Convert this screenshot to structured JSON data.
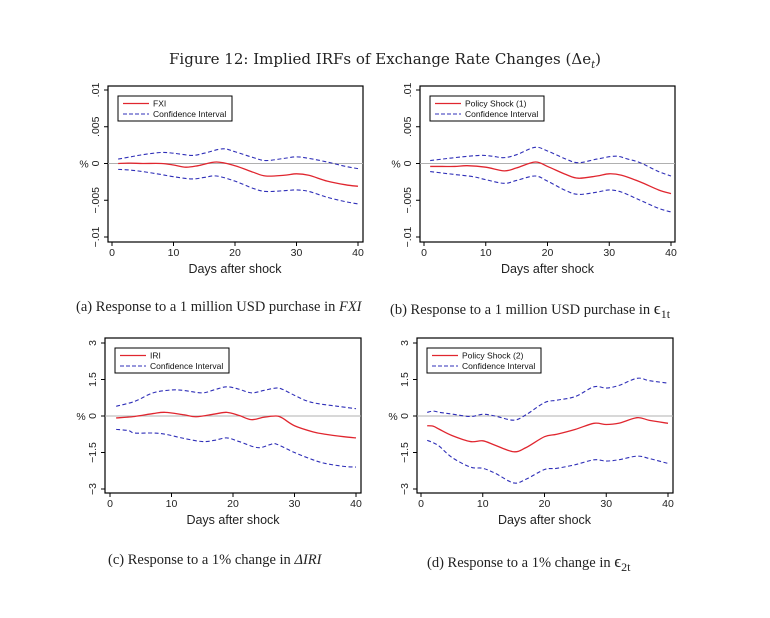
{
  "figure": {
    "title": "Figure 12: Implied IRFs of Exchange Rate Changes (Δe",
    "title_sub": "t",
    "title_close": ")"
  },
  "captions": {
    "a": {
      "prefix": "(a) Response to a 1 million USD purchase in ",
      "math": "FXI",
      "sub": ""
    },
    "b": {
      "prefix": "(b) Response to a 1 million USD purchase in ",
      "math": "ϵ",
      "sub": "1t"
    },
    "c": {
      "prefix": "(c) Response to a 1% change in ",
      "math": "ΔIRI",
      "sub": ""
    },
    "d": {
      "prefix": "(d) Response to a 1% change in ",
      "math": "ϵ",
      "sub": "2t"
    }
  },
  "colors": {
    "point": "#e0262f",
    "ci": "#2f2fb8",
    "zero_line": "#b0b0b0",
    "frame": "#000000"
  },
  "chart_data": [
    {
      "id": "a",
      "type": "line",
      "xlabel": "Days after shock",
      "ylabel": "%",
      "xlim": [
        0,
        40
      ],
      "ylim": [
        -0.01,
        0.01
      ],
      "xticks": [
        0,
        10,
        20,
        30,
        40
      ],
      "yticks": [
        -0.01,
        -0.005,
        0,
        0.005,
        0.01
      ],
      "ytick_labels": [
        "-.01",
        "-.005",
        "0",
        ".005",
        ".01"
      ],
      "legend": [
        "FXI",
        "Confidence Interval"
      ],
      "legend_position": "top-left",
      "reference_line": 0,
      "series": [
        {
          "name": "FXI",
          "style": "solid",
          "x": [
            1,
            3,
            5,
            8,
            10,
            12,
            14,
            17,
            20,
            23,
            25,
            28,
            30,
            32,
            35,
            38,
            40
          ],
          "y": [
            0.0,
            5e-05,
            0.0,
            0.0,
            -0.0002,
            -0.0005,
            -0.0003,
            0.0002,
            -0.0003,
            -0.0012,
            -0.0017,
            -0.0016,
            -0.0014,
            -0.0016,
            -0.0024,
            -0.0029,
            -0.0031
          ]
        },
        {
          "name": "Confidence Interval (upper)",
          "style": "dashed",
          "x": [
            1,
            3,
            5,
            8,
            10,
            13,
            15,
            18,
            20,
            23,
            25,
            28,
            30,
            32,
            35,
            38,
            40
          ],
          "y": [
            0.0006,
            0.0009,
            0.0012,
            0.0015,
            0.0014,
            0.0011,
            0.0014,
            0.002,
            0.0016,
            0.0008,
            0.0004,
            0.0007,
            0.0009,
            0.0007,
            0.0002,
            -0.0004,
            -0.0007
          ]
        },
        {
          "name": "Confidence Interval (lower)",
          "style": "dashed",
          "x": [
            1,
            3,
            5,
            8,
            10,
            13,
            15,
            17,
            20,
            23,
            25,
            28,
            30,
            32,
            35,
            38,
            40
          ],
          "y": [
            -0.0008,
            -0.0009,
            -0.0011,
            -0.0015,
            -0.0018,
            -0.0021,
            -0.0019,
            -0.0017,
            -0.0024,
            -0.0034,
            -0.0038,
            -0.0037,
            -0.0036,
            -0.0038,
            -0.0046,
            -0.0052,
            -0.0055
          ]
        }
      ]
    },
    {
      "id": "b",
      "type": "line",
      "xlabel": "Days after shock",
      "ylabel": "%",
      "xlim": [
        0,
        40
      ],
      "ylim": [
        -0.01,
        0.01
      ],
      "xticks": [
        0,
        10,
        20,
        30,
        40
      ],
      "yticks": [
        -0.01,
        -0.005,
        0,
        0.005,
        0.01
      ],
      "ytick_labels": [
        "-.01",
        "-.005",
        "0",
        ".005",
        ".01"
      ],
      "legend": [
        "Policy Shock (1)",
        "Confidence Interval"
      ],
      "legend_position": "top-left",
      "reference_line": 0,
      "series": [
        {
          "name": "Policy Shock (1)",
          "style": "solid",
          "x": [
            1,
            3,
            5,
            7,
            10,
            13,
            15,
            18,
            20,
            23,
            25,
            28,
            30,
            32,
            35,
            38,
            40
          ],
          "y": [
            -0.0004,
            -0.0004,
            -0.0004,
            -0.0003,
            -0.0005,
            -0.001,
            -0.0006,
            0.0002,
            -0.0004,
            -0.0015,
            -0.002,
            -0.0017,
            -0.0014,
            -0.0016,
            -0.0025,
            -0.0036,
            -0.0041
          ]
        },
        {
          "name": "Confidence Interval (upper)",
          "style": "dashed",
          "x": [
            1,
            3,
            5,
            9,
            11,
            13,
            15,
            18,
            20,
            23,
            25,
            28,
            31,
            33,
            35,
            38,
            40
          ],
          "y": [
            0.0004,
            0.0006,
            0.0008,
            0.0011,
            0.001,
            0.0008,
            0.0012,
            0.0022,
            0.0017,
            0.0006,
            0.0001,
            0.0006,
            0.001,
            0.0006,
            0.0001,
            -0.0011,
            -0.0017
          ]
        },
        {
          "name": "Confidence Interval (lower)",
          "style": "dashed",
          "x": [
            1,
            3,
            5,
            8,
            10,
            13,
            15,
            18,
            20,
            23,
            25,
            28,
            30,
            32,
            35,
            38,
            40
          ],
          "y": [
            -0.0011,
            -0.0013,
            -0.0015,
            -0.0018,
            -0.0022,
            -0.0027,
            -0.0023,
            -0.0017,
            -0.0024,
            -0.0037,
            -0.0042,
            -0.0039,
            -0.0036,
            -0.0039,
            -0.005,
            -0.0061,
            -0.0066
          ]
        }
      ]
    },
    {
      "id": "c",
      "type": "line",
      "xlabel": "Days after shock",
      "ylabel": "%",
      "xlim": [
        0,
        40
      ],
      "ylim": [
        -3,
        3
      ],
      "xticks": [
        0,
        10,
        20,
        30,
        40
      ],
      "yticks": [
        -3,
        -1.5,
        0,
        1.5,
        3
      ],
      "ytick_labels": [
        "-3",
        "-1.5",
        "0",
        "1.5",
        "3"
      ],
      "legend": [
        "IRI",
        "Confidence Interval"
      ],
      "legend_position": "top-left",
      "reference_line": 0,
      "series": [
        {
          "name": "IRI",
          "style": "solid",
          "x": [
            1,
            4,
            7,
            9,
            12,
            14,
            17,
            19,
            21,
            23,
            25,
            27,
            28,
            30,
            33,
            35,
            38,
            40
          ],
          "y": [
            -0.08,
            -0.02,
            0.1,
            0.15,
            0.05,
            -0.03,
            0.08,
            0.15,
            0.02,
            -0.15,
            -0.05,
            0.0,
            -0.08,
            -0.4,
            -0.65,
            -0.75,
            -0.85,
            -0.9
          ]
        },
        {
          "name": "Confidence Interval (upper)",
          "style": "dashed",
          "x": [
            1,
            4,
            7,
            10,
            12,
            15,
            17,
            19,
            21,
            23,
            25,
            27,
            28,
            30,
            32,
            34,
            37,
            40
          ],
          "y": [
            0.4,
            0.6,
            0.95,
            1.07,
            1.05,
            0.95,
            1.08,
            1.2,
            1.1,
            0.95,
            1.05,
            1.15,
            1.1,
            0.85,
            0.62,
            0.5,
            0.4,
            0.3
          ]
        },
        {
          "name": "Confidence Interval (lower)",
          "style": "dashed",
          "x": [
            1,
            3,
            4,
            7,
            9,
            12,
            15,
            17,
            19,
            21,
            24,
            26,
            27,
            30,
            33,
            35,
            38,
            40
          ],
          "y": [
            -0.55,
            -0.6,
            -0.7,
            -0.7,
            -0.75,
            -0.92,
            -1.05,
            -1.0,
            -0.9,
            -1.05,
            -1.3,
            -1.18,
            -1.15,
            -1.5,
            -1.8,
            -1.95,
            -2.07,
            -2.1
          ]
        }
      ]
    },
    {
      "id": "d",
      "type": "line",
      "xlabel": "Days after shock",
      "ylabel": "%",
      "xlim": [
        0,
        40
      ],
      "ylim": [
        -3,
        3
      ],
      "xticks": [
        0,
        10,
        20,
        30,
        40
      ],
      "yticks": [
        -3,
        -1.5,
        0,
        1.5,
        3
      ],
      "ytick_labels": [
        "-3",
        "-1.5",
        "0",
        "1.5",
        "3"
      ],
      "legend": [
        "Policy Shock (2)",
        "Confidence Interval"
      ],
      "legend_position": "top-left",
      "reference_line": 0,
      "series": [
        {
          "name": "Policy Shock (2)",
          "style": "solid",
          "x": [
            1,
            2,
            3,
            5,
            8,
            10,
            12,
            15,
            17,
            20,
            22,
            25,
            28,
            30,
            32,
            35,
            37,
            40
          ],
          "y": [
            -0.4,
            -0.42,
            -0.55,
            -0.8,
            -1.05,
            -1.02,
            -1.2,
            -1.47,
            -1.3,
            -0.85,
            -0.75,
            -0.55,
            -0.3,
            -0.35,
            -0.3,
            -0.07,
            -0.18,
            -0.3
          ]
        },
        {
          "name": "Confidence Interval (upper)",
          "style": "dashed",
          "x": [
            1,
            2,
            3,
            5,
            8,
            10,
            12,
            15,
            17,
            20,
            22,
            25,
            28,
            30,
            32,
            35,
            37,
            40
          ],
          "y": [
            0.15,
            0.2,
            0.15,
            0.08,
            -0.02,
            0.07,
            0.0,
            -0.17,
            0.05,
            0.55,
            0.65,
            0.8,
            1.2,
            1.15,
            1.25,
            1.55,
            1.45,
            1.35
          ]
        },
        {
          "name": "Confidence Interval (lower)",
          "style": "dashed",
          "x": [
            1,
            2,
            3,
            5,
            8,
            10,
            12,
            15,
            17,
            20,
            22,
            25,
            28,
            30,
            32,
            35,
            37,
            40
          ],
          "y": [
            -1.0,
            -1.1,
            -1.25,
            -1.7,
            -2.1,
            -2.15,
            -2.35,
            -2.75,
            -2.6,
            -2.2,
            -2.15,
            -2.0,
            -1.8,
            -1.85,
            -1.8,
            -1.65,
            -1.75,
            -1.95
          ]
        }
      ]
    }
  ]
}
